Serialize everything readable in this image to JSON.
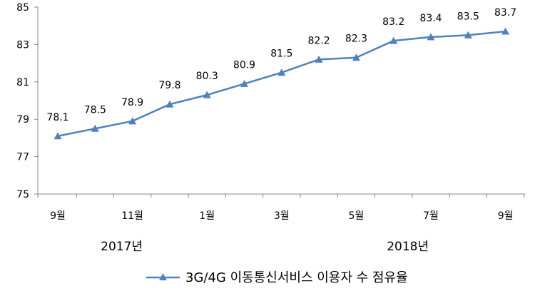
{
  "chart_data": {
    "type": "line",
    "title": "",
    "xlabel": "",
    "ylabel": "",
    "x": [
      "2017-09",
      "2017-10",
      "2017-11",
      "2017-12",
      "2018-01",
      "2018-02",
      "2018-03",
      "2018-04",
      "2018-05",
      "2018-06",
      "2018-07",
      "2018-08",
      "2018-09"
    ],
    "x_tick_labels": [
      "9월",
      "",
      "11월",
      "",
      "1월",
      "",
      "3월",
      "",
      "5월",
      "",
      "7월",
      "",
      "9월"
    ],
    "year_labels": [
      "2017년",
      "2018년"
    ],
    "ylim": [
      75,
      85
    ],
    "y_ticks": [
      75,
      77,
      79,
      81,
      83,
      85
    ],
    "grid": false,
    "legend_position": "bottom",
    "series": [
      {
        "name": "3G/4G 이동통신서비스 이용자 수 점유율",
        "color": "#4f81bd",
        "marker": "triangle",
        "values": [
          78.1,
          78.5,
          78.9,
          79.8,
          80.3,
          80.9,
          81.5,
          82.2,
          82.3,
          83.2,
          83.4,
          83.5,
          83.7
        ],
        "data_labels": [
          "78.1",
          "78.5",
          "78.9",
          "79.8",
          "80.3",
          "80.9",
          "81.5",
          "82.2",
          "82.3",
          "83.2",
          "83.4",
          "83.5",
          "83.7"
        ]
      }
    ]
  }
}
